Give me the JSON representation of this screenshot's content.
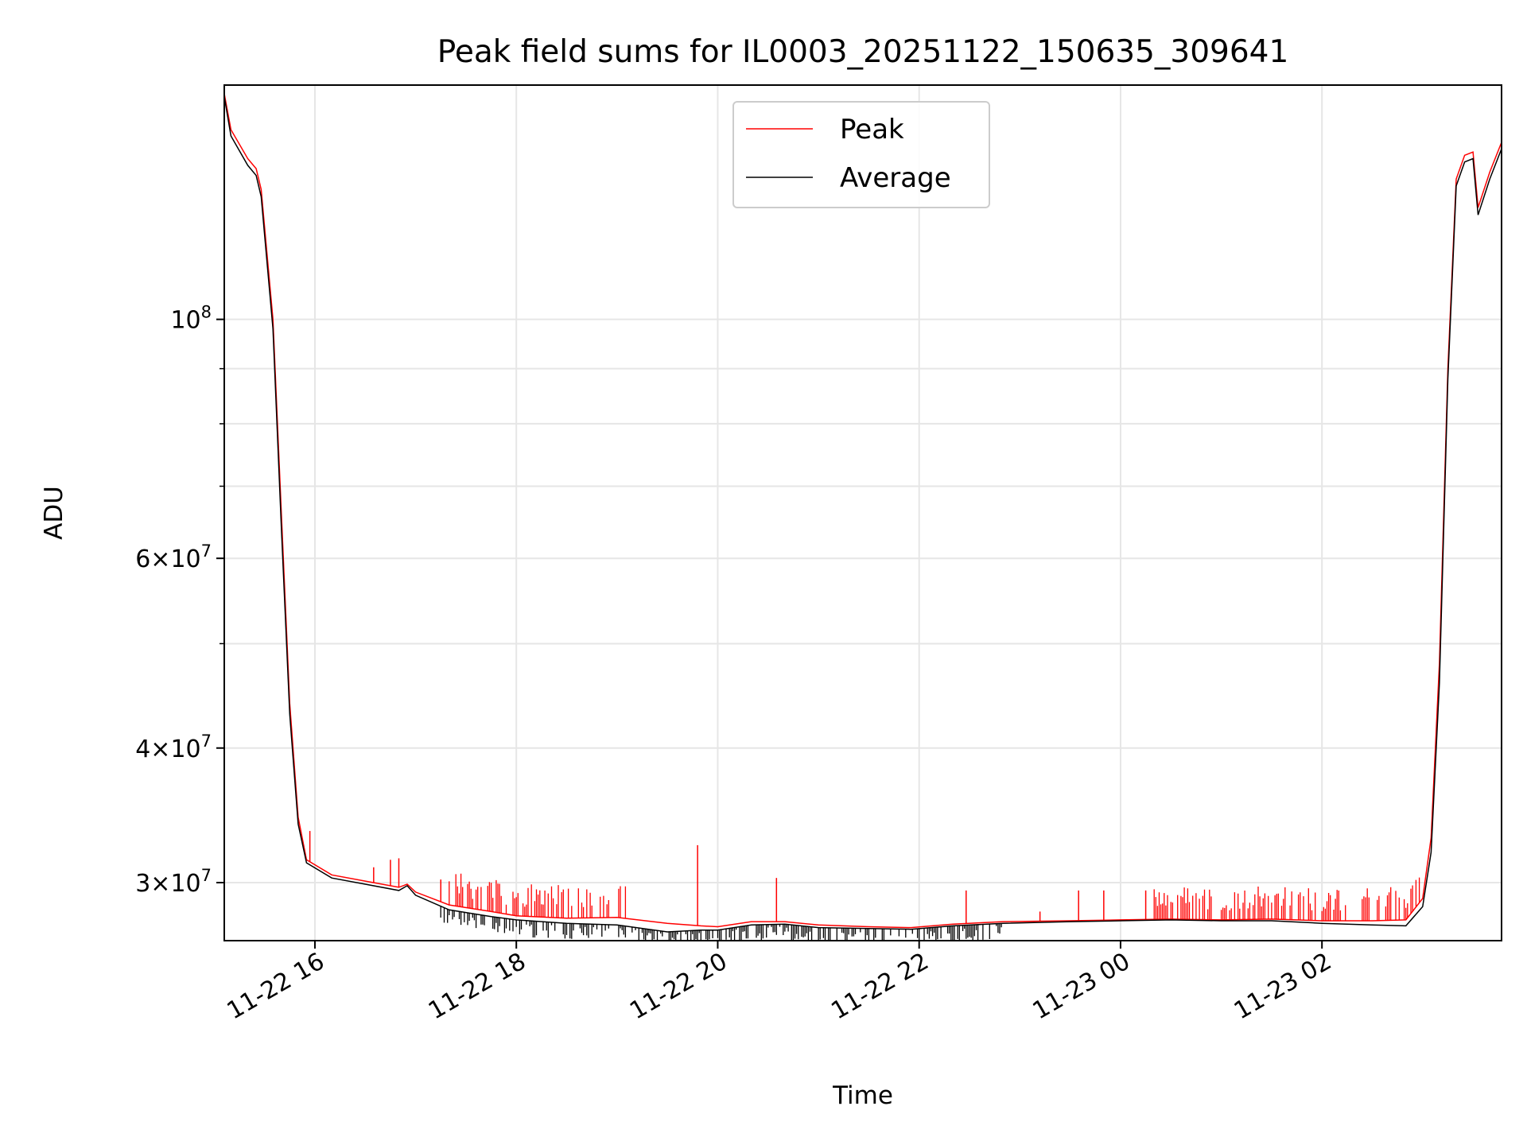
{
  "chart_data": {
    "type": "line",
    "title": "Peak field sums for IL0003_20251122_150635_309641",
    "xlabel": "Time",
    "ylabel": "ADU",
    "y_scale": "log",
    "ylim": [
      26500000,
      165000000
    ],
    "xlim": [
      "2025-11-22 15:06",
      "2025-11-23 03:47"
    ],
    "grid": true,
    "legend_position": "top-center",
    "x_ticks": [
      {
        "value": "2025-11-22 16:00",
        "label": "11-22 16"
      },
      {
        "value": "2025-11-22 18:00",
        "label": "11-22 18"
      },
      {
        "value": "2025-11-22 20:00",
        "label": "11-22 20"
      },
      {
        "value": "2025-11-22 22:00",
        "label": "11-22 22"
      },
      {
        "value": "2025-11-23 00:00",
        "label": "11-23 00"
      },
      {
        "value": "2025-11-23 02:00",
        "label": "11-23 02"
      }
    ],
    "y_ticks": [
      {
        "value": 30000000,
        "base": "3",
        "exp": "7"
      },
      {
        "value": 40000000,
        "base": "4",
        "exp": "7"
      },
      {
        "value": 60000000,
        "base": "6",
        "exp": "7"
      },
      {
        "value": 100000000,
        "base": "",
        "exp": "8"
      }
    ],
    "y_minor_ticks": [
      50000000,
      70000000,
      80000000,
      90000000
    ],
    "series": [
      {
        "name": "Peak",
        "color": "#ff0000",
        "points": [
          [
            "2025-11-22 15:06",
            162000000
          ],
          [
            "2025-11-22 15:10",
            150000000
          ],
          [
            "2025-11-22 15:20",
            141000000
          ],
          [
            "2025-11-22 15:25",
            138000000
          ],
          [
            "2025-11-22 15:28",
            132000000
          ],
          [
            "2025-11-22 15:35",
            100000000
          ],
          [
            "2025-11-22 15:40",
            66000000
          ],
          [
            "2025-11-22 15:45",
            44000000
          ],
          [
            "2025-11-22 15:50",
            34500000
          ],
          [
            "2025-11-22 15:55",
            31500000
          ],
          [
            "2025-11-22 16:10",
            30500000
          ],
          [
            "2025-11-22 16:30",
            30100000
          ],
          [
            "2025-11-22 16:50",
            29700000
          ],
          [
            "2025-11-22 16:55",
            29900000
          ],
          [
            "2025-11-22 17:00",
            29400000
          ],
          [
            "2025-11-22 17:20",
            28600000
          ],
          [
            "2025-11-22 17:45",
            28200000
          ],
          [
            "2025-11-22 18:00",
            27950000
          ],
          [
            "2025-11-22 18:30",
            27800000
          ],
          [
            "2025-11-22 19:00",
            27850000
          ],
          [
            "2025-11-22 19:30",
            27500000
          ],
          [
            "2025-11-22 19:50",
            27350000
          ],
          [
            "2025-11-22 20:00",
            27300000
          ],
          [
            "2025-11-22 20:20",
            27600000
          ],
          [
            "2025-11-22 20:40",
            27600000
          ],
          [
            "2025-11-22 21:00",
            27400000
          ],
          [
            "2025-11-22 21:30",
            27300000
          ],
          [
            "2025-11-22 21:55",
            27250000
          ],
          [
            "2025-11-22 22:20",
            27450000
          ],
          [
            "2025-11-22 22:50",
            27600000
          ],
          [
            "2025-11-22 23:30",
            27650000
          ],
          [
            "2025-11-23 00:00",
            27700000
          ],
          [
            "2025-11-23 00:30",
            27750000
          ],
          [
            "2025-11-23 01:00",
            27700000
          ],
          [
            "2025-11-23 01:30",
            27750000
          ],
          [
            "2025-11-23 02:00",
            27650000
          ],
          [
            "2025-11-23 02:30",
            27650000
          ],
          [
            "2025-11-23 02:50",
            27700000
          ],
          [
            "2025-11-23 03:00",
            29000000
          ],
          [
            "2025-11-23 03:05",
            33000000
          ],
          [
            "2025-11-23 03:10",
            48000000
          ],
          [
            "2025-11-23 03:15",
            90000000
          ],
          [
            "2025-11-23 03:20",
            135000000
          ],
          [
            "2025-11-23 03:25",
            142000000
          ],
          [
            "2025-11-23 03:30",
            143000000
          ],
          [
            "2025-11-23 03:33",
            127000000
          ],
          [
            "2025-11-23 03:40",
            137000000
          ],
          [
            "2025-11-23 03:47",
            146000000
          ]
        ],
        "spikes": [
          [
            "2025-11-22 15:57",
            33500000
          ],
          [
            "2025-11-22 16:35",
            31000000
          ],
          [
            "2025-11-22 16:45",
            31500000
          ],
          [
            "2025-11-22 16:50",
            31600000
          ],
          [
            "2025-11-22 17:15",
            30200000
          ],
          [
            "2025-11-22 19:48",
            32500000
          ],
          [
            "2025-11-22 20:35",
            30300000
          ],
          [
            "2025-11-22 22:28",
            29500000
          ],
          [
            "2025-11-22 23:12",
            28200000
          ],
          [
            "2025-11-22 23:35",
            29500000
          ],
          [
            "2025-11-22 23:50",
            29500000
          ],
          [
            "2025-11-23 00:15",
            29500000
          ]
        ]
      },
      {
        "name": "Average",
        "color": "#000000",
        "points": [
          [
            "2025-11-22 15:06",
            161000000
          ],
          [
            "2025-11-22 15:10",
            148000000
          ],
          [
            "2025-11-22 15:20",
            139000000
          ],
          [
            "2025-11-22 15:25",
            136000000
          ],
          [
            "2025-11-22 15:28",
            130000000
          ],
          [
            "2025-11-22 15:35",
            98000000
          ],
          [
            "2025-11-22 15:40",
            64000000
          ],
          [
            "2025-11-22 15:45",
            43000000
          ],
          [
            "2025-11-22 15:50",
            34000000
          ],
          [
            "2025-11-22 15:55",
            31300000
          ],
          [
            "2025-11-22 16:10",
            30300000
          ],
          [
            "2025-11-22 16:30",
            29900000
          ],
          [
            "2025-11-22 16:50",
            29500000
          ],
          [
            "2025-11-22 16:55",
            29800000
          ],
          [
            "2025-11-22 17:00",
            29200000
          ],
          [
            "2025-11-22 17:20",
            28300000
          ],
          [
            "2025-11-22 17:45",
            27900000
          ],
          [
            "2025-11-22 18:00",
            27700000
          ],
          [
            "2025-11-22 18:30",
            27500000
          ],
          [
            "2025-11-22 19:00",
            27400000
          ],
          [
            "2025-11-22 19:30",
            27000000
          ],
          [
            "2025-11-22 19:50",
            27100000
          ],
          [
            "2025-11-22 20:00",
            27100000
          ],
          [
            "2025-11-22 20:20",
            27400000
          ],
          [
            "2025-11-22 20:40",
            27450000
          ],
          [
            "2025-11-22 21:00",
            27250000
          ],
          [
            "2025-11-22 21:30",
            27200000
          ],
          [
            "2025-11-22 21:55",
            27150000
          ],
          [
            "2025-11-22 22:20",
            27350000
          ],
          [
            "2025-11-22 22:50",
            27500000
          ],
          [
            "2025-11-22 23:30",
            27600000
          ],
          [
            "2025-11-23 00:00",
            27650000
          ],
          [
            "2025-11-23 00:30",
            27700000
          ],
          [
            "2025-11-23 01:00",
            27650000
          ],
          [
            "2025-11-23 01:30",
            27650000
          ],
          [
            "2025-11-23 02:00",
            27500000
          ],
          [
            "2025-11-23 02:30",
            27400000
          ],
          [
            "2025-11-23 02:50",
            27350000
          ],
          [
            "2025-11-23 03:00",
            28500000
          ],
          [
            "2025-11-23 03:05",
            32000000
          ],
          [
            "2025-11-23 03:10",
            46000000
          ],
          [
            "2025-11-23 03:15",
            88000000
          ],
          [
            "2025-11-23 03:20",
            133000000
          ],
          [
            "2025-11-23 03:25",
            140000000
          ],
          [
            "2025-11-23 03:30",
            141000000
          ],
          [
            "2025-11-23 03:33",
            125000000
          ],
          [
            "2025-11-23 03:40",
            135000000
          ],
          [
            "2025-11-23 03:47",
            144000000
          ]
        ]
      }
    ]
  }
}
